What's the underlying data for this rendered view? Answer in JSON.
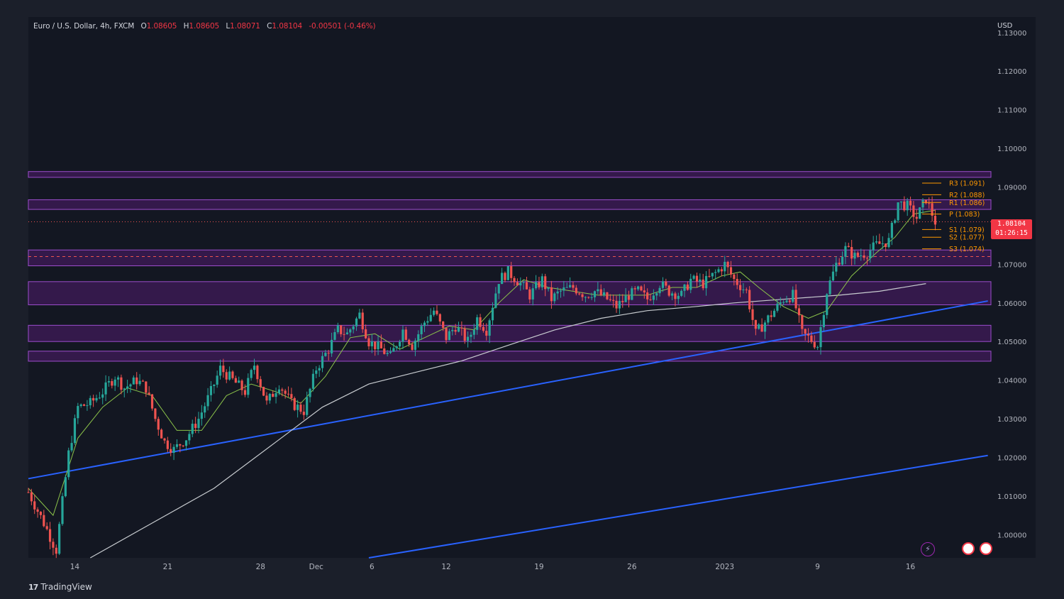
{
  "header": {
    "symbol": "Euro / U.S. Dollar, 4h, FXCM",
    "o_label": "O",
    "o_value": "1.08605",
    "h_label": "H",
    "h_value": "1.08605",
    "l_label": "L",
    "l_value": "1.08071",
    "c_label": "C",
    "c_value": "1.08104",
    "change": "-0.00501 (-0.46%)"
  },
  "price_badge": {
    "price": "1.08104",
    "countdown": "01:26:15"
  },
  "y_unit": "USD",
  "brand": {
    "logo_mark": "17",
    "name": "TradingView"
  },
  "icons": {
    "bolt": "lightning-icon",
    "flags": [
      "us-flag-icon",
      "us-flag-icon"
    ]
  },
  "colors": {
    "background": "#131722",
    "bull": "#26a69a",
    "bear": "#ef5350",
    "zone": "#7b1fa2",
    "trendline": "#2962ff",
    "fast_ma": "#8bc34a",
    "slow_ma": "#c8ccd0",
    "pivot": "#ff9800"
  },
  "chart_data": {
    "type": "candlestick",
    "title": "Euro / U.S. Dollar, 4h, FXCM",
    "xlabel": "",
    "ylabel": "USD",
    "ylim": [
      0.994,
      1.134
    ],
    "y_ticks": [
      "1.13000",
      "1.12000",
      "1.11000",
      "1.10000",
      "1.09000",
      "1.08000",
      "1.07000",
      "1.06000",
      "1.05000",
      "1.04000",
      "1.03000",
      "1.02000",
      "1.01000",
      "1.00000"
    ],
    "x_ticks": [
      {
        "label": "14",
        "bar": 15
      },
      {
        "label": "21",
        "bar": 45
      },
      {
        "label": "28",
        "bar": 75
      },
      {
        "label": "Dec",
        "bar": 93
      },
      {
        "label": "6",
        "bar": 111
      },
      {
        "label": "12",
        "bar": 135
      },
      {
        "label": "19",
        "bar": 165
      },
      {
        "label": "26",
        "bar": 195
      },
      {
        "label": "2023",
        "bar": 225
      },
      {
        "label": "9",
        "bar": 255
      },
      {
        "label": "16",
        "bar": 285
      }
    ],
    "total_bars": 311,
    "close_path": [
      [
        0,
        1.011
      ],
      [
        5,
        1.003
      ],
      [
        9,
        0.996
      ],
      [
        13,
        1.021
      ],
      [
        16,
        1.033
      ],
      [
        20,
        1.034
      ],
      [
        24,
        1.037
      ],
      [
        28,
        1.041
      ],
      [
        31,
        1.038
      ],
      [
        35,
        1.04
      ],
      [
        38,
        1.038
      ],
      [
        41,
        1.03
      ],
      [
        44,
        1.024
      ],
      [
        47,
        1.022
      ],
      [
        51,
        1.025
      ],
      [
        55,
        1.03
      ],
      [
        59,
        1.037
      ],
      [
        62,
        1.043
      ],
      [
        66,
        1.04
      ],
      [
        70,
        1.037
      ],
      [
        73,
        1.044
      ],
      [
        77,
        1.034
      ],
      [
        81,
        1.039
      ],
      [
        85,
        1.034
      ],
      [
        89,
        1.032
      ],
      [
        93,
        1.043
      ],
      [
        97,
        1.048
      ],
      [
        100,
        1.053
      ],
      [
        103,
        1.052
      ],
      [
        107,
        1.057
      ],
      [
        110,
        1.05
      ],
      [
        114,
        1.048
      ],
      [
        117,
        1.046
      ],
      [
        121,
        1.053
      ],
      [
        124,
        1.049
      ],
      [
        128,
        1.055
      ],
      [
        131,
        1.058
      ],
      [
        135,
        1.051
      ],
      [
        138,
        1.054
      ],
      [
        142,
        1.05
      ],
      [
        145,
        1.056
      ],
      [
        148,
        1.053
      ],
      [
        152,
        1.066
      ],
      [
        155,
        1.068
      ],
      [
        159,
        1.065
      ],
      [
        162,
        1.062
      ],
      [
        166,
        1.066
      ],
      [
        169,
        1.061
      ],
      [
        172,
        1.063
      ],
      [
        176,
        1.064
      ],
      [
        180,
        1.062
      ],
      [
        183,
        1.063
      ],
      [
        187,
        1.061
      ],
      [
        190,
        1.059
      ],
      [
        194,
        1.062
      ],
      [
        197,
        1.063
      ],
      [
        200,
        1.061
      ],
      [
        204,
        1.065
      ],
      [
        207,
        1.063
      ],
      [
        211,
        1.062
      ],
      [
        214,
        1.066
      ],
      [
        218,
        1.065
      ],
      [
        221,
        1.067
      ],
      [
        225,
        1.07
      ],
      [
        228,
        1.066
      ],
      [
        232,
        1.063
      ],
      [
        235,
        1.052
      ],
      [
        238,
        1.055
      ],
      [
        241,
        1.058
      ],
      [
        244,
        1.061
      ],
      [
        247,
        1.062
      ],
      [
        250,
        1.052
      ],
      [
        252,
        1.051
      ],
      [
        255,
        1.049
      ],
      [
        258,
        1.063
      ],
      [
        261,
        1.07
      ],
      [
        264,
        1.074
      ],
      [
        267,
        1.072
      ],
      [
        271,
        1.073
      ],
      [
        274,
        1.075
      ],
      [
        278,
        1.076
      ],
      [
        281,
        1.086
      ],
      [
        284,
        1.085
      ],
      [
        287,
        1.082
      ],
      [
        290,
        1.087
      ],
      [
        293,
        1.081
      ]
    ],
    "fast_ma": [
      [
        0,
        1.012
      ],
      [
        8,
        1.005
      ],
      [
        16,
        1.025
      ],
      [
        24,
        1.033
      ],
      [
        32,
        1.038
      ],
      [
        40,
        1.036
      ],
      [
        48,
        1.027
      ],
      [
        56,
        1.027
      ],
      [
        64,
        1.036
      ],
      [
        72,
        1.039
      ],
      [
        80,
        1.037
      ],
      [
        88,
        1.034
      ],
      [
        96,
        1.041
      ],
      [
        104,
        1.051
      ],
      [
        112,
        1.052
      ],
      [
        120,
        1.048
      ],
      [
        128,
        1.051
      ],
      [
        136,
        1.054
      ],
      [
        144,
        1.053
      ],
      [
        152,
        1.06
      ],
      [
        160,
        1.066
      ],
      [
        168,
        1.064
      ],
      [
        176,
        1.063
      ],
      [
        184,
        1.062
      ],
      [
        192,
        1.062
      ],
      [
        200,
        1.062
      ],
      [
        208,
        1.064
      ],
      [
        216,
        1.064
      ],
      [
        224,
        1.067
      ],
      [
        230,
        1.068
      ],
      [
        236,
        1.064
      ],
      [
        244,
        1.059
      ],
      [
        252,
        1.056
      ],
      [
        258,
        1.058
      ],
      [
        266,
        1.067
      ],
      [
        274,
        1.073
      ],
      [
        280,
        1.077
      ],
      [
        286,
        1.083
      ],
      [
        293,
        1.084
      ]
    ],
    "slow_ma": [
      [
        20,
        0.994
      ],
      [
        40,
        1.003
      ],
      [
        60,
        1.012
      ],
      [
        80,
        1.024
      ],
      [
        95,
        1.033
      ],
      [
        110,
        1.039
      ],
      [
        125,
        1.042
      ],
      [
        140,
        1.045
      ],
      [
        155,
        1.049
      ],
      [
        170,
        1.053
      ],
      [
        185,
        1.056
      ],
      [
        200,
        1.058
      ],
      [
        215,
        1.059
      ],
      [
        228,
        1.06
      ],
      [
        245,
        1.061
      ],
      [
        262,
        1.062
      ],
      [
        275,
        1.063
      ],
      [
        290,
        1.065
      ]
    ],
    "trendlines": [
      {
        "from": [
          0,
          1.0145
        ],
        "to": [
          310,
          1.0605
        ]
      },
      {
        "from": [
          110,
          0.994
        ],
        "to": [
          310,
          1.0205
        ]
      }
    ],
    "zones": [
      [
        1.0925,
        1.094
      ],
      [
        1.0842,
        1.0867
      ],
      [
        1.0696,
        1.0737
      ],
      [
        1.0595,
        1.0655
      ],
      [
        1.05,
        1.0542
      ],
      [
        1.0449,
        1.0475
      ]
    ],
    "dashed_levels": [
      1.081,
      1.072
    ],
    "pivots": [
      {
        "label": "R3 (1.091)",
        "value": 1.091
      },
      {
        "label": "R2 (1.088)",
        "value": 1.088
      },
      {
        "label": "R1 (1.086)",
        "value": 1.086
      },
      {
        "label": "P (1.083)",
        "value": 1.083
      },
      {
        "label": "S1 (1.079)",
        "value": 1.079
      },
      {
        "label": "S2 (1.077)",
        "value": 1.077
      },
      {
        "label": "S3 (1.074)",
        "value": 1.074
      }
    ]
  }
}
